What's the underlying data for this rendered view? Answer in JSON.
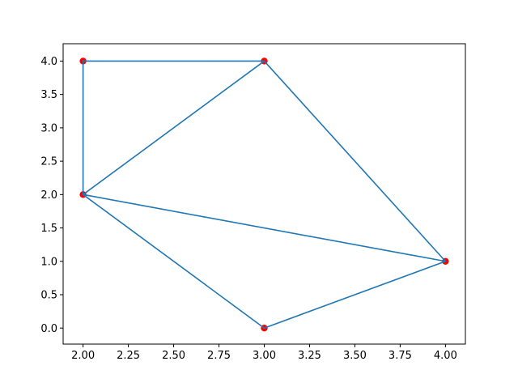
{
  "figure": {
    "background": "#ffffff"
  },
  "chart_data": {
    "type": "scatter",
    "title": "",
    "xlabel": "",
    "ylabel": "",
    "grid": false,
    "legend": null,
    "xlim": [
      1.89,
      4.11
    ],
    "ylim": [
      -0.24,
      4.26
    ],
    "points": [
      {
        "x": 2,
        "y": 4
      },
      {
        "x": 3,
        "y": 4
      },
      {
        "x": 2,
        "y": 2
      },
      {
        "x": 4,
        "y": 1
      },
      {
        "x": 3,
        "y": 0
      }
    ],
    "edges": [
      {
        "x1": 2,
        "y1": 4,
        "x2": 3,
        "y2": 4
      },
      {
        "x1": 2,
        "y1": 4,
        "x2": 2,
        "y2": 2
      },
      {
        "x1": 2,
        "y1": 2,
        "x2": 3,
        "y2": 4
      },
      {
        "x1": 3,
        "y1": 4,
        "x2": 4,
        "y2": 1
      },
      {
        "x1": 2,
        "y1": 2,
        "x2": 4,
        "y2": 1
      },
      {
        "x1": 2,
        "y1": 2,
        "x2": 3,
        "y2": 0
      },
      {
        "x1": 3,
        "y1": 0,
        "x2": 4,
        "y2": 1
      }
    ],
    "x_ticks": {
      "values": [
        2.0,
        2.25,
        2.5,
        2.75,
        3.0,
        3.25,
        3.5,
        3.75,
        4.0
      ],
      "labels": [
        "2.00",
        "2.25",
        "2.50",
        "2.75",
        "3.00",
        "3.25",
        "3.50",
        "3.75",
        "4.00"
      ]
    },
    "y_ticks": {
      "values": [
        4.0,
        3.5,
        3.0,
        2.5,
        2.0,
        1.5,
        1.0,
        0.5,
        0.0
      ],
      "labels": [
        "4.0",
        "3.5",
        "3.0",
        "2.5",
        "2.0",
        "1.5",
        "1.0",
        "0.5",
        "0.0"
      ]
    },
    "colors": {
      "edge_line": "#1f77b4",
      "node_marker": "#ff0000",
      "axes_frame": "#000000",
      "tick": "#000000",
      "background": "#ffffff"
    }
  }
}
